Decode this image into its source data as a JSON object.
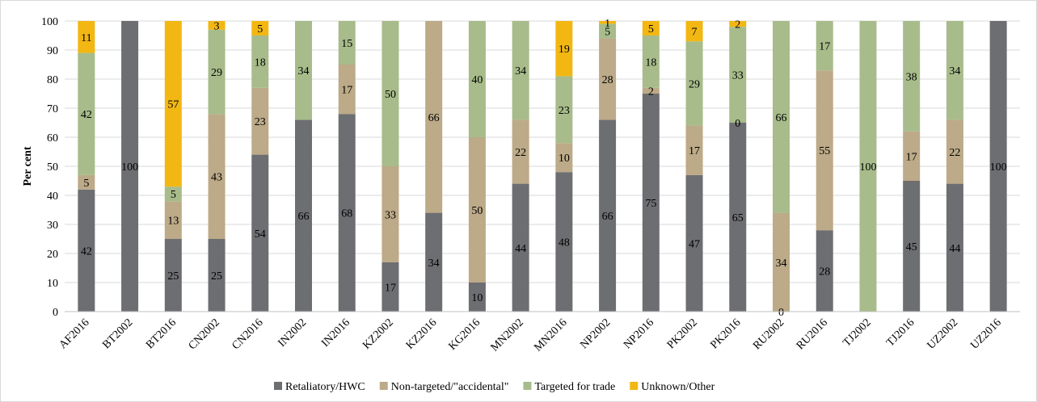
{
  "chart_data": {
    "type": "bar",
    "stacked": true,
    "ylabel": "Per cent",
    "ylim": [
      0,
      100
    ],
    "yticks": [
      0,
      10,
      20,
      30,
      40,
      50,
      60,
      70,
      80,
      90,
      100
    ],
    "grid": true,
    "legend_position": "bottom",
    "categories": [
      "AF2016",
      "BT2002",
      "BT2016",
      "CN2002",
      "CN2016",
      "IN2002",
      "IN2016",
      "KZ2002",
      "KZ2016",
      "KG2016",
      "MN2002",
      "MN2016",
      "NP2002",
      "NP2016",
      "PK2002",
      "PK2016",
      "RU2002",
      "RU2016",
      "TJ2002",
      "TJ2016",
      "UZ2002",
      "UZ2016"
    ],
    "series": [
      {
        "name": "Retaliatory/HWC",
        "color": "#6d6e71",
        "values": [
          42,
          100,
          25,
          25,
          54,
          66,
          68,
          17,
          34,
          10,
          44,
          48,
          66,
          75,
          47,
          65,
          0,
          28,
          0,
          45,
          44,
          100
        ],
        "labels": [
          42,
          100,
          25,
          25,
          54,
          66,
          68,
          17,
          34,
          10,
          44,
          48,
          66,
          75,
          47,
          65,
          0,
          28,
          null,
          45,
          44,
          100
        ]
      },
      {
        "name": "Non-targeted/\"accidental\"",
        "color": "#bcaa88",
        "values": [
          5,
          0,
          13,
          43,
          23,
          0,
          17,
          33,
          66,
          50,
          22,
          10,
          28,
          2,
          17,
          0,
          34,
          55,
          0,
          17,
          22,
          0
        ],
        "labels": [
          5,
          null,
          13,
          43,
          23,
          null,
          17,
          33,
          66,
          50,
          22,
          10,
          28,
          2,
          17,
          0,
          34,
          55,
          null,
          17,
          22,
          null
        ]
      },
      {
        "name": "Targeted for trade",
        "color": "#a7bc8a",
        "values": [
          42,
          0,
          5,
          29,
          18,
          34,
          15,
          50,
          0,
          40,
          34,
          23,
          5,
          18,
          29,
          33,
          66,
          17,
          100,
          38,
          34,
          0
        ],
        "labels": [
          42,
          null,
          5,
          29,
          18,
          34,
          15,
          50,
          null,
          40,
          34,
          23,
          5,
          18,
          29,
          33,
          66,
          17,
          100,
          38,
          34,
          null
        ]
      },
      {
        "name": "Unknown/Other",
        "color": "#f2b713",
        "values": [
          11,
          0,
          57,
          3,
          5,
          0,
          0,
          0,
          0,
          0,
          0,
          19,
          1,
          5,
          7,
          2,
          0,
          0,
          0,
          0,
          0,
          0
        ],
        "labels": [
          11,
          null,
          57,
          3,
          5,
          null,
          null,
          null,
          null,
          null,
          null,
          19,
          1,
          5,
          7,
          2,
          null,
          null,
          null,
          null,
          null,
          null
        ]
      }
    ]
  }
}
